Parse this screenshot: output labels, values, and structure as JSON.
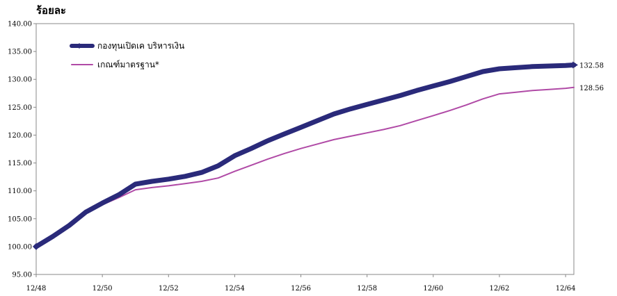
{
  "chart_data": {
    "type": "line",
    "ylabel": "ร้อยละ",
    "ylim": [
      95,
      140
    ],
    "yticks": [
      "140.00",
      "135.00",
      "130.00",
      "125.00",
      "120.00",
      "115.00",
      "110.00",
      "105.00",
      "100.00",
      "95.00"
    ],
    "xticks": [
      "12/48",
      "12/50",
      "12/52",
      "12/54",
      "12/56",
      "12/58",
      "12/60",
      "12/62",
      "12/64"
    ],
    "grid": false,
    "legend_position": "top-left",
    "series": [
      {
        "name": "กองทุนเปิดเค บริหารเงิน",
        "color": "#2a2a7a",
        "end_label": "132.58",
        "x": [
          "12/48",
          "06/49",
          "12/49",
          "06/50",
          "12/50",
          "06/51",
          "12/51",
          "06/52",
          "12/52",
          "06/53",
          "12/53",
          "06/54",
          "12/54",
          "06/55",
          "12/55",
          "06/56",
          "12/56",
          "06/57",
          "12/57",
          "06/58",
          "12/58",
          "06/59",
          "12/59",
          "06/60",
          "12/60",
          "06/61",
          "12/61",
          "06/62",
          "12/62",
          "06/63",
          "12/63",
          "06/64",
          "12/64",
          "03/65"
        ],
        "values": [
          100.0,
          101.8,
          103.8,
          106.2,
          107.8,
          109.3,
          111.2,
          111.7,
          112.1,
          112.6,
          113.3,
          114.5,
          116.3,
          117.6,
          119.0,
          120.2,
          121.4,
          122.6,
          123.8,
          124.7,
          125.5,
          126.3,
          127.1,
          128.0,
          128.8,
          129.6,
          130.5,
          131.4,
          131.9,
          132.1,
          132.3,
          132.4,
          132.5,
          132.58
        ]
      },
      {
        "name": "เกณฑ์มาตรฐาน*",
        "color": "#b04aa6",
        "end_label": "128.56",
        "x": [
          "12/48",
          "06/49",
          "12/49",
          "06/50",
          "12/50",
          "06/51",
          "12/51",
          "06/52",
          "12/52",
          "06/53",
          "12/53",
          "06/54",
          "12/54",
          "06/55",
          "12/55",
          "06/56",
          "12/56",
          "06/57",
          "12/57",
          "06/58",
          "12/58",
          "06/59",
          "12/59",
          "06/60",
          "12/60",
          "06/61",
          "12/61",
          "06/62",
          "12/62",
          "06/63",
          "12/63",
          "06/64",
          "12/64",
          "03/65"
        ],
        "values": [
          100.0,
          101.7,
          103.8,
          106.0,
          107.5,
          108.8,
          110.2,
          110.6,
          110.9,
          111.3,
          111.7,
          112.3,
          113.5,
          114.6,
          115.7,
          116.7,
          117.6,
          118.4,
          119.2,
          119.8,
          120.4,
          121.0,
          121.7,
          122.6,
          123.5,
          124.4,
          125.4,
          126.5,
          127.4,
          127.7,
          128.0,
          128.2,
          128.4,
          128.56
        ]
      }
    ]
  }
}
